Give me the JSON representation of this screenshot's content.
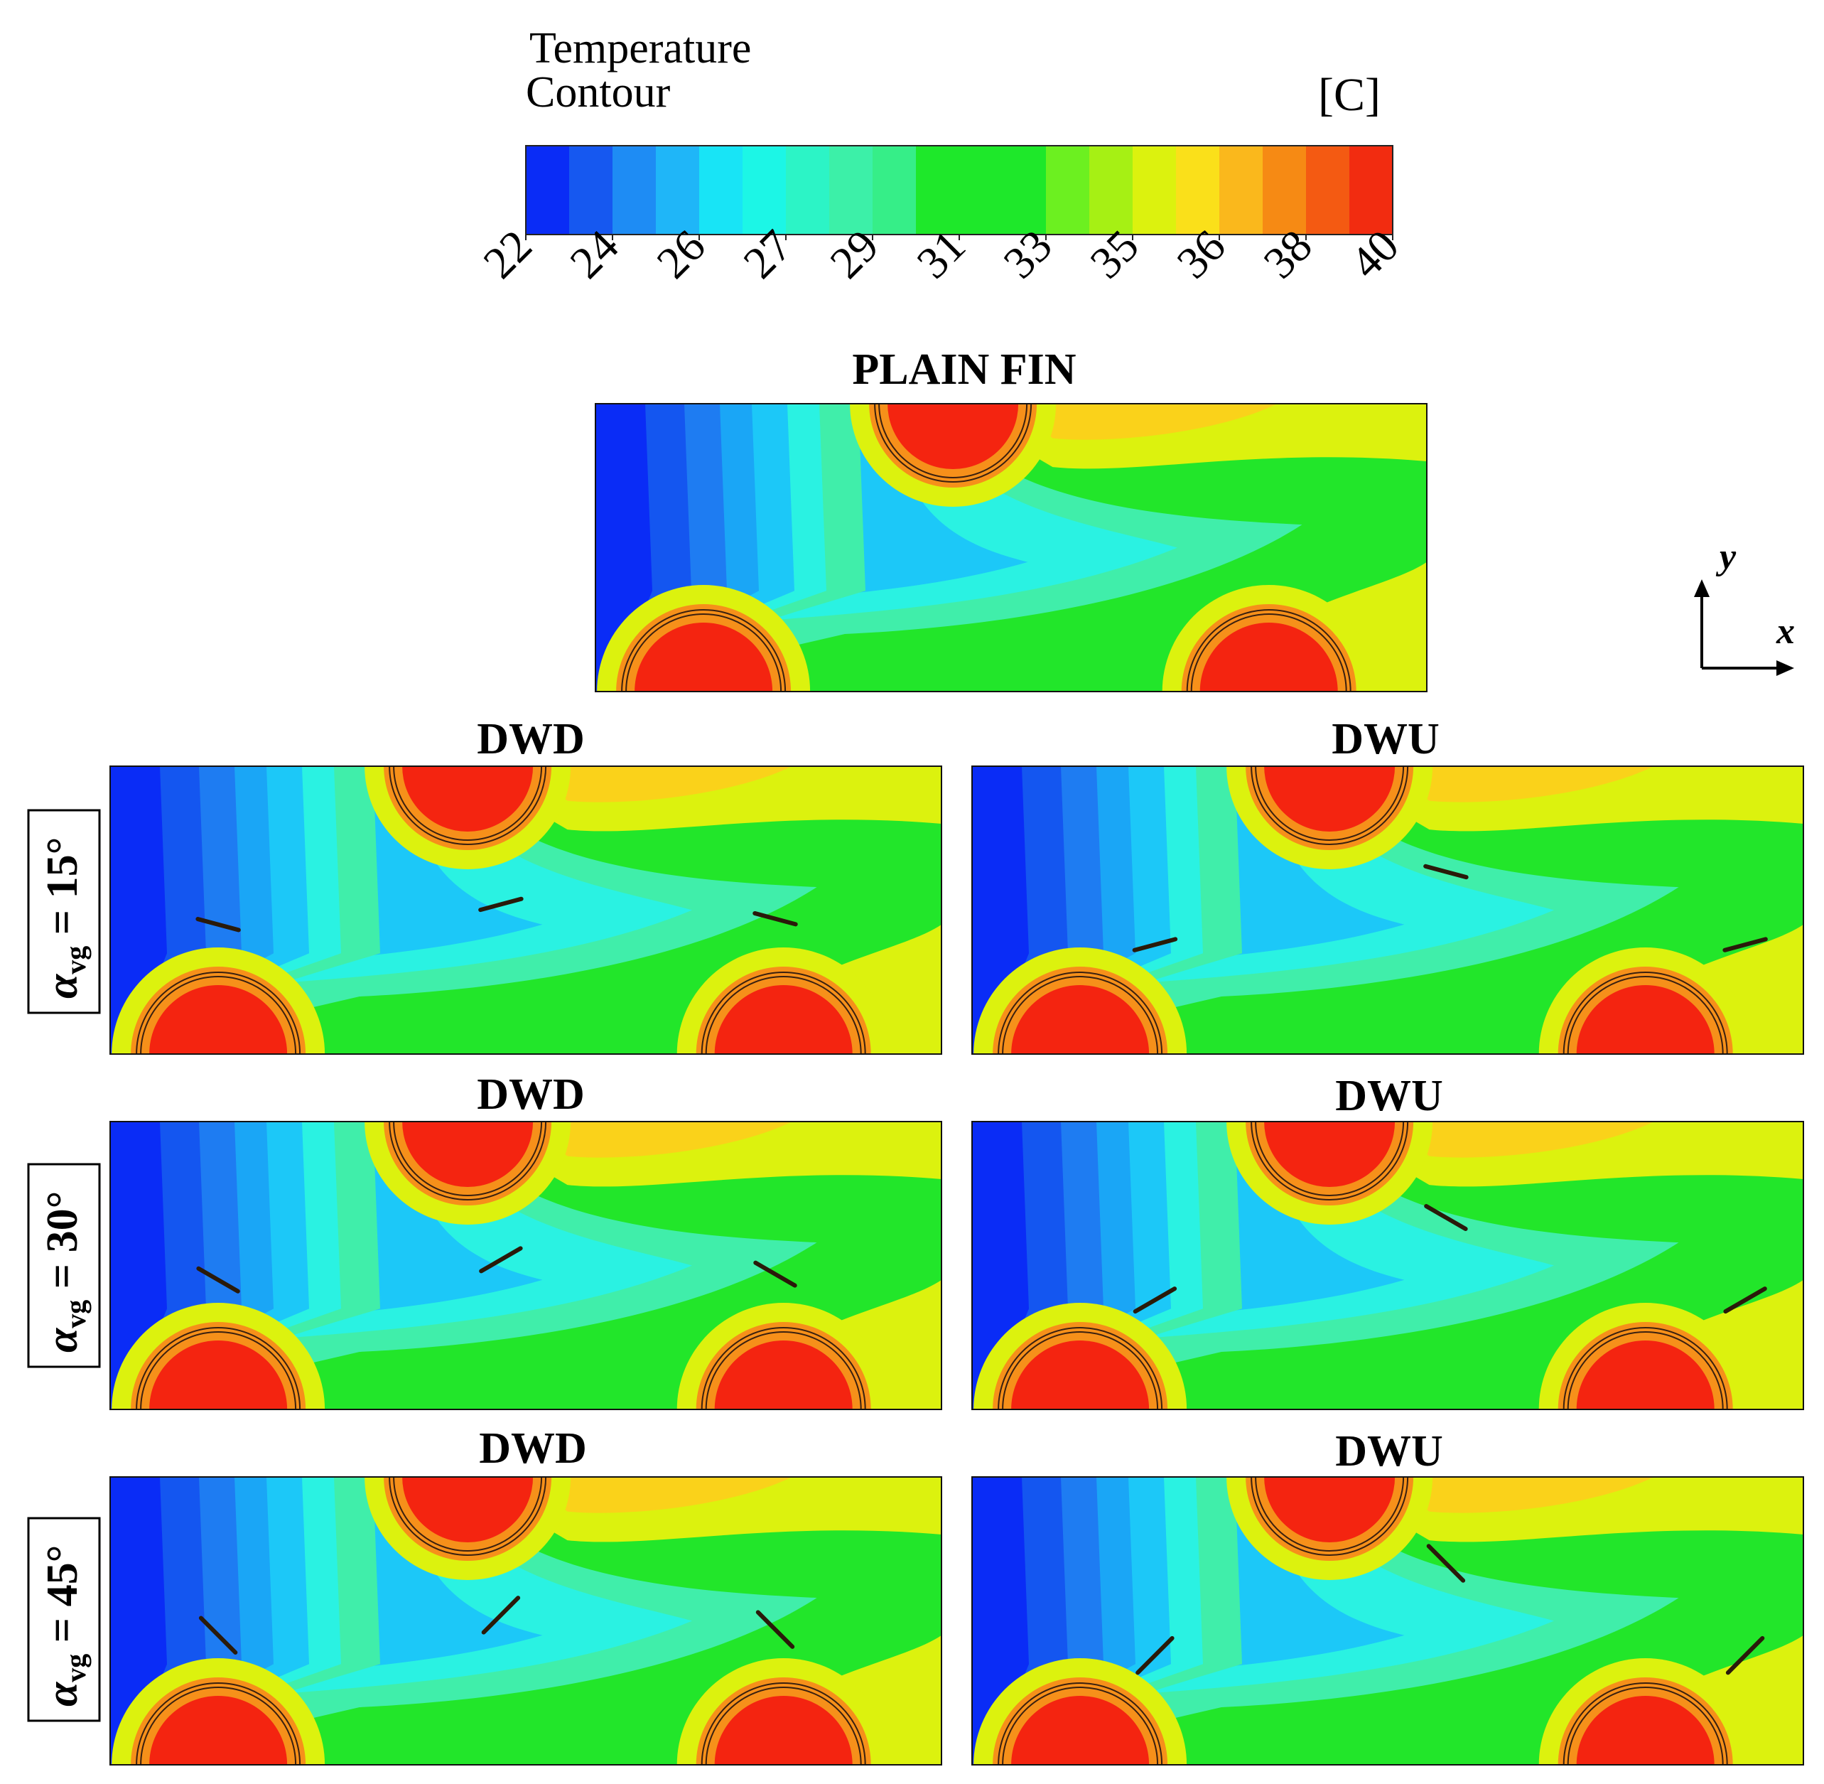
{
  "colorbar": {
    "title_line1": "Temperature",
    "title_line2": "Contour",
    "unit": "[C]",
    "tick_labels": [
      "22",
      "24",
      "26",
      "27",
      "29",
      "31",
      "33",
      "35",
      "36",
      "38",
      "40"
    ],
    "colors": [
      "#0a2cf6",
      "#1658f0",
      "#1e8cf4",
      "#1fb6f8",
      "#18e4f6",
      "#1cf6e6",
      "#2cf4c6",
      "#3cf0a8",
      "#36ee88",
      "#1ee82a",
      "#1ee82a",
      "#1ee82a",
      "#6cf020",
      "#a6f014",
      "#dcf20e",
      "#fae01a",
      "#fab81c",
      "#f68a14",
      "#f45a12",
      "#f22c10"
    ]
  },
  "panels": {
    "plain_title": "PLAIN FIN",
    "dwd_title": "DWD",
    "dwu_title": "DWU"
  },
  "rows": [
    {
      "label_alpha": "α",
      "label_sub": "vg",
      "label_eq": " = 15°"
    },
    {
      "label_alpha": "α",
      "label_sub": "vg",
      "label_eq": " = 30°"
    },
    {
      "label_alpha": "α",
      "label_sub": "vg",
      "label_eq": " = 45°"
    }
  ],
  "axes": {
    "x_label": "x",
    "y_label": "y"
  },
  "temperature_colors": {
    "t22": "#0a2cf6",
    "t24": "#1e7cf2",
    "t26": "#1cc8f8",
    "t27": "#2af2e2",
    "t29": "#40eeaa",
    "t31": "#22e62a",
    "t33": "#6cf020",
    "t35": "#dcf20e",
    "t36": "#fad21a",
    "t38": "#f6901a",
    "t40": "#f42410"
  }
}
